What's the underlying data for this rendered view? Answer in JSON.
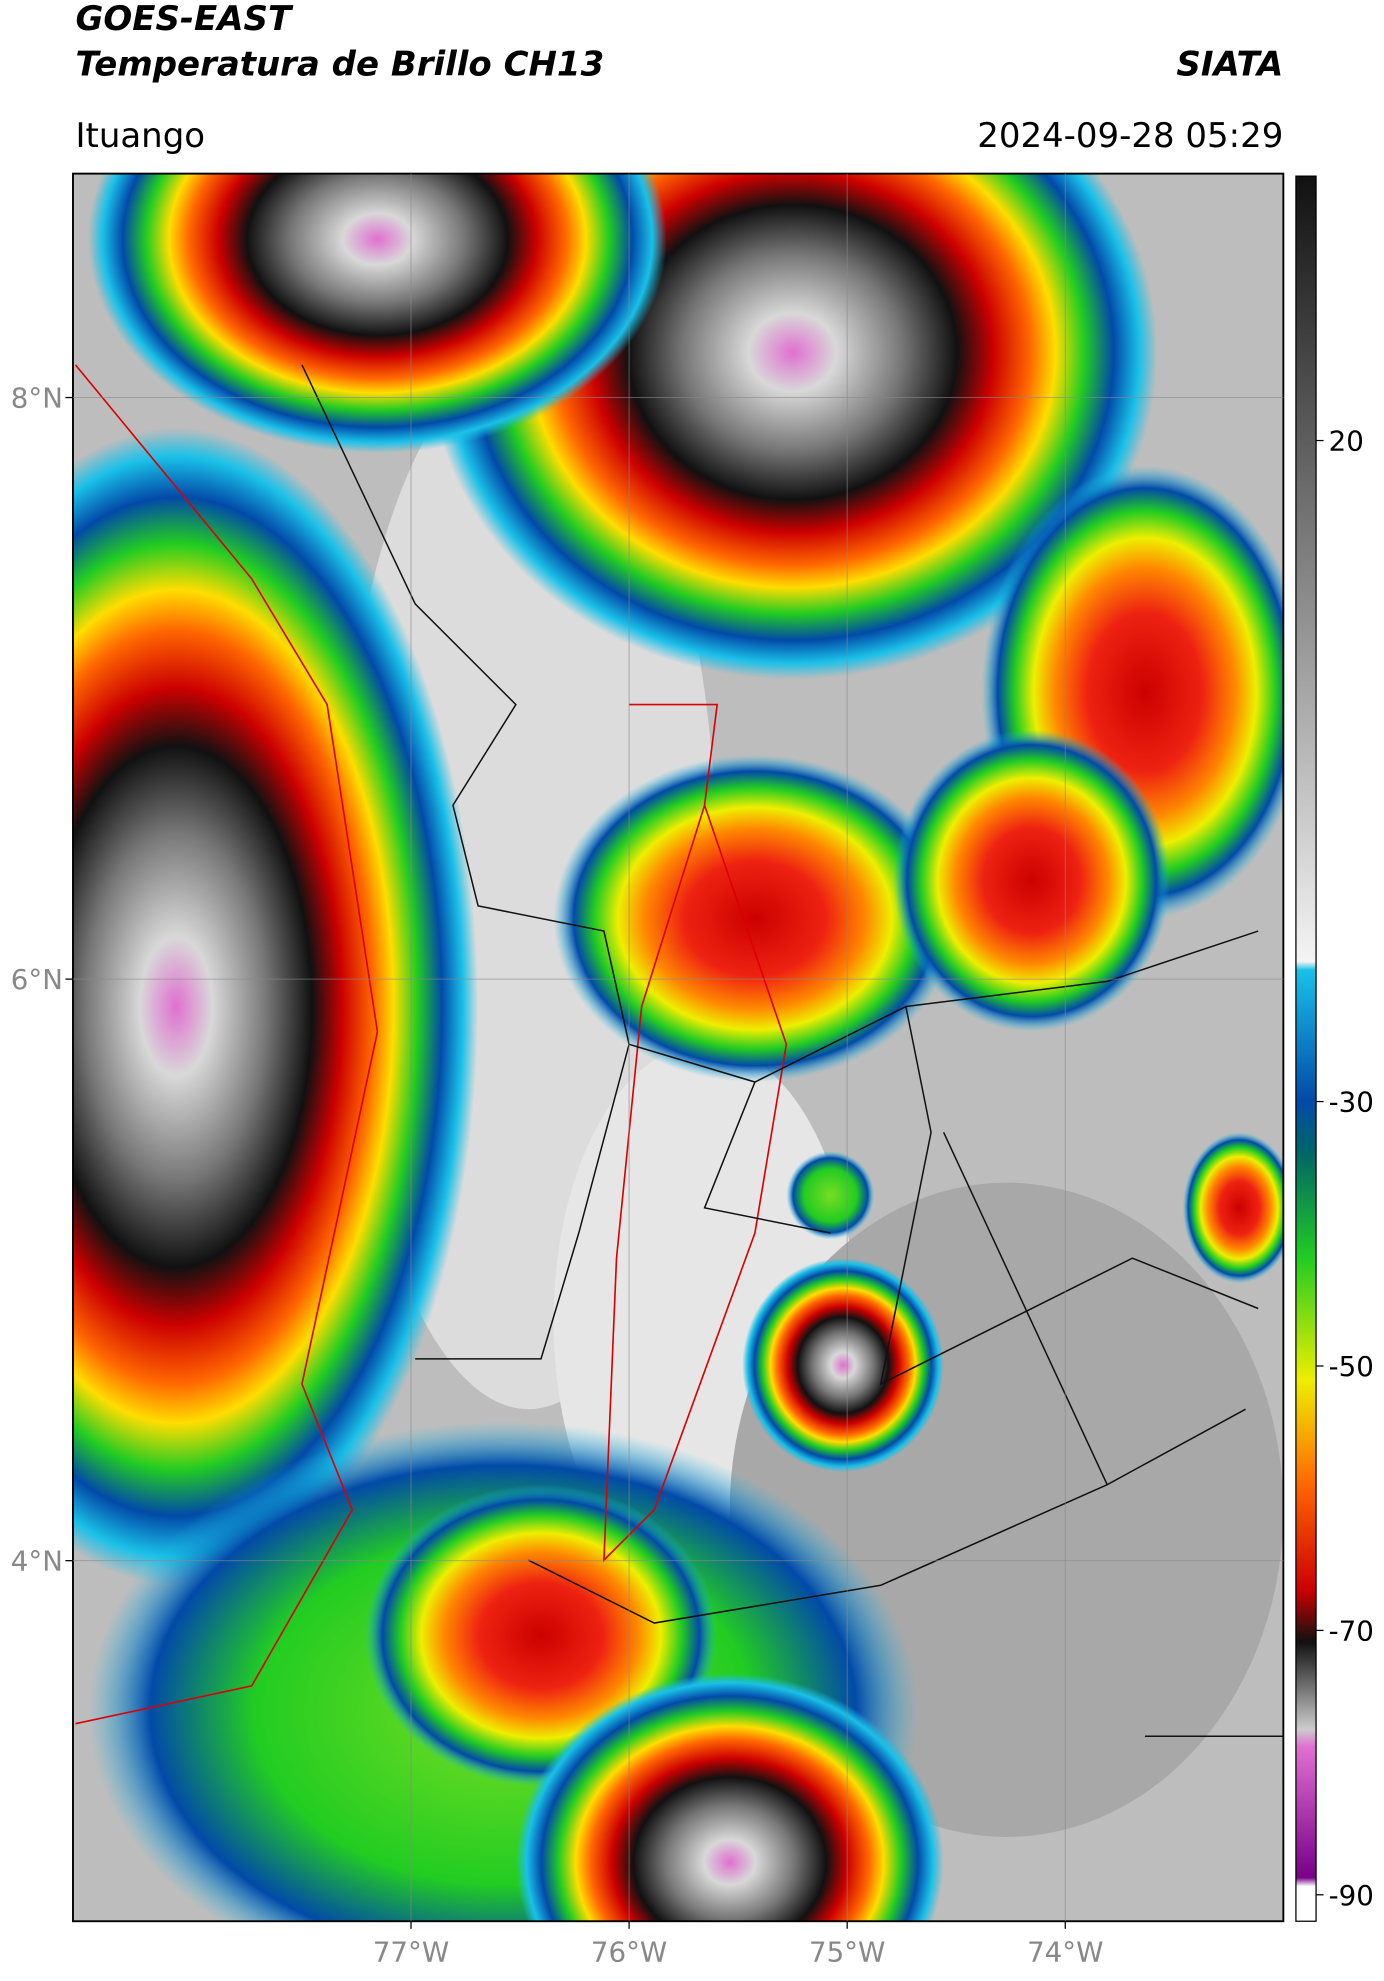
{
  "chart_data": {
    "type": "map",
    "title": "GOES-EAST",
    "subtitle": "Temperatura de Brillo CH13",
    "source": "SIATA",
    "location": "Ituango",
    "datetime": "2024-09-28 05:29",
    "xlim": [
      -78.55,
      -73
    ],
    "ylim": [
      2.76,
      8.77
    ],
    "xticks": [
      {
        "value": -77,
        "label": "77°W"
      },
      {
        "value": -76,
        "label": "76°W"
      },
      {
        "value": -75,
        "label": "75°W"
      },
      {
        "value": -74,
        "label": "74°W"
      }
    ],
    "yticks": [
      {
        "value": 8,
        "label": "8°N"
      },
      {
        "value": 6,
        "label": "6°N"
      },
      {
        "value": 4,
        "label": "4°N"
      }
    ],
    "clim": [
      -92,
      40
    ],
    "cticks": [
      20,
      -30,
      -50,
      -70,
      -90
    ],
    "grid": true
  }
}
